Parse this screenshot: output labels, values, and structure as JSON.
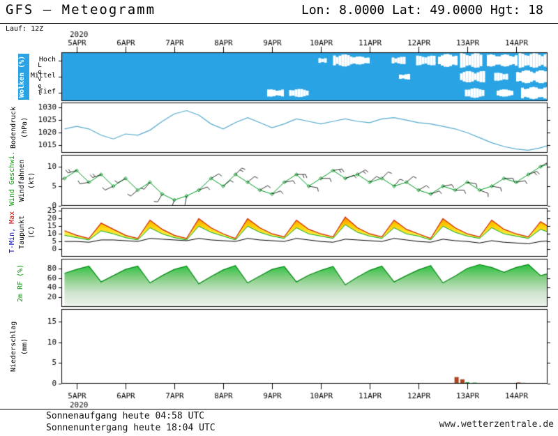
{
  "header": {
    "title": "GFS — Meteogramm",
    "location": "Lon: 8.0000 Lat: 49.0000 Hgt: 18",
    "run": "Lauf: 12Z"
  },
  "time": {
    "year": "2020",
    "days": [
      "5APR",
      "6APR",
      "7APR",
      "8APR",
      "9APR",
      "10APR",
      "11APR",
      "12APR",
      "13APR",
      "14APR"
    ],
    "start": -0.25,
    "step": 0.25,
    "count": 41
  },
  "footer": {
    "sunrise": "Sonnenaufgang heute 04:58 UTC",
    "sunset": "Sonnenuntergang heute 18:04 UTC",
    "website": "www.wetterzentrale.de"
  },
  "chart_data": [
    {
      "id": "clouds",
      "type": "area",
      "label": "Wolken (%)",
      "axis_label": "Level",
      "rows": [
        "Hoch",
        "Mittel",
        "Tief"
      ],
      "bg_color": "#29a3e3",
      "cloud_color": "#ffffff",
      "segments": {
        "Hoch": [
          [
            4.95,
            5.1,
            0.35
          ],
          [
            5.25,
            5.6,
            0.75
          ],
          [
            5.6,
            5.95,
            0.5
          ],
          [
            6.45,
            6.7,
            0.45
          ],
          [
            6.95,
            7.3,
            0.6
          ],
          [
            7.4,
            7.75,
            0.8
          ],
          [
            7.85,
            8.3,
            0.9
          ],
          [
            8.4,
            9.0,
            0.75
          ],
          [
            9.05,
            9.65,
            0.9
          ]
        ],
        "Mittel": [
          [
            6.6,
            6.8,
            0.35
          ],
          [
            7.85,
            8.35,
            0.7
          ],
          [
            8.55,
            8.8,
            0.5
          ],
          [
            9.0,
            9.65,
            0.8
          ]
        ],
        "Tief": [
          [
            3.9,
            4.2,
            0.45
          ],
          [
            4.35,
            4.7,
            0.5
          ],
          [
            7.95,
            8.35,
            0.6
          ],
          [
            8.6,
            8.9,
            0.45
          ],
          [
            9.1,
            9.65,
            0.75
          ]
        ]
      }
    },
    {
      "id": "pressure",
      "type": "line",
      "label": "Bodendruck",
      "unit": "(hPa)",
      "ylim": [
        1012,
        1032
      ],
      "yticks": [
        1015,
        1020,
        1025,
        1030
      ],
      "color": "#55aacc",
      "values": [
        1021.5,
        1022.5,
        1021.5,
        1019,
        1017.5,
        1019.5,
        1019,
        1021,
        1024.5,
        1027.5,
        1028.8,
        1027,
        1023.5,
        1021.5,
        1024,
        1026,
        1024,
        1022,
        1023.5,
        1025.5,
        1024.5,
        1023.5,
        1024.5,
        1025.5,
        1024.5,
        1024,
        1025.5,
        1026,
        1025,
        1024,
        1023.5,
        1022.5,
        1021.5,
        1020,
        1018,
        1016,
        1014.5,
        1013.5,
        1013,
        1014,
        1015.5
      ]
    },
    {
      "id": "wind",
      "type": "line-markers-barbs",
      "label_speed": "Wind Geschwi.",
      "label_barbs": "Windfahnen",
      "unit": "(kt)",
      "ylim": [
        0,
        13
      ],
      "yticks": [
        0,
        5,
        10
      ],
      "color": "#009922",
      "speed": [
        7,
        9,
        6,
        8,
        5,
        7,
        4,
        6,
        3,
        1.5,
        2.5,
        4,
        7,
        5,
        8,
        6,
        4,
        3,
        6,
        8,
        5,
        7,
        9,
        7,
        8,
        6,
        7,
        5,
        6,
        4,
        3,
        5,
        4,
        6,
        4,
        5,
        7,
        6,
        8,
        10,
        11
      ],
      "direction_deg": [
        250,
        255,
        260,
        250,
        245,
        240,
        230,
        220,
        210,
        200,
        190,
        70,
        60,
        50,
        45,
        50,
        60,
        70,
        80,
        90,
        100,
        90,
        80,
        70,
        60,
        50,
        45,
        40,
        50,
        60,
        70,
        80,
        90,
        100,
        110,
        100,
        90,
        80,
        70,
        60,
        50
      ]
    },
    {
      "id": "temperature",
      "type": "band-line",
      "label_min": "T-Min,",
      "label_max": "Max",
      "label_dew": "Taupunkt",
      "unit": "(C)",
      "ylim": [
        -5,
        27
      ],
      "yticks": [
        0,
        5,
        10,
        15,
        20,
        25
      ],
      "colors": {
        "max_line": "#cc2200",
        "min_line": "#00aa22",
        "dew_line": "#000000"
      },
      "tmax": [
        12,
        9,
        7,
        17,
        13,
        9,
        7,
        19,
        13,
        9,
        7,
        20,
        14,
        10,
        7,
        20,
        14,
        10,
        8,
        19,
        13,
        10,
        8,
        21,
        14,
        10,
        8,
        19,
        13,
        10,
        7,
        20,
        14,
        10,
        8,
        19,
        13,
        10,
        8,
        18,
        13
      ],
      "tmin": [
        9,
        7.5,
        6,
        12,
        10,
        7.5,
        6,
        14,
        10,
        7.5,
        6,
        15,
        11,
        8.5,
        6,
        15,
        11,
        8.5,
        7,
        14,
        10,
        8.5,
        7,
        16,
        11,
        8.5,
        7,
        14,
        10,
        8.5,
        6,
        15,
        11,
        8.5,
        7,
        14,
        10,
        8.5,
        7,
        13,
        10
      ],
      "dewpoint": [
        5,
        5,
        4.5,
        6,
        6,
        5.5,
        5,
        7,
        6.5,
        6,
        5.5,
        7,
        6,
        5.5,
        5,
        7,
        6,
        5.5,
        5,
        7,
        6,
        5,
        4.5,
        6.5,
        6,
        5.5,
        5,
        7,
        6,
        5,
        4.5,
        6.5,
        5.5,
        5,
        4,
        5.5,
        4.5,
        4,
        3.5,
        5,
        5.5
      ]
    },
    {
      "id": "humidity",
      "type": "area",
      "label": "2m RF (%)",
      "ylim": [
        0,
        100
      ],
      "yticks": [
        20,
        40,
        60,
        80
      ],
      "color_line": "#008811",
      "values": [
        70,
        78,
        85,
        52,
        65,
        78,
        85,
        50,
        65,
        78,
        85,
        48,
        63,
        77,
        86,
        50,
        64,
        78,
        84,
        52,
        66,
        76,
        84,
        46,
        62,
        76,
        85,
        52,
        65,
        77,
        86,
        50,
        64,
        80,
        88,
        82,
        72,
        82,
        88,
        65,
        72
      ]
    },
    {
      "id": "precipitation",
      "type": "bar",
      "label": "Niederschlag",
      "unit": "(mm)",
      "ylim": [
        0,
        18
      ],
      "yticks": [
        0,
        5,
        10,
        15
      ],
      "bars": [
        {
          "t": 7.78,
          "v": 1.6,
          "color": "#aa4422"
        },
        {
          "t": 7.9,
          "v": 1.05,
          "color": "#aa4422"
        },
        {
          "t": 8.0,
          "v": 0.35,
          "color": "#00aa22"
        },
        {
          "t": 8.15,
          "v": 0.25,
          "color": "#00aa22"
        },
        {
          "t": 9.05,
          "v": 0.3,
          "color": "#aa4422"
        },
        {
          "t": 9.15,
          "v": 0.2,
          "color": "#00aa22"
        }
      ]
    }
  ]
}
